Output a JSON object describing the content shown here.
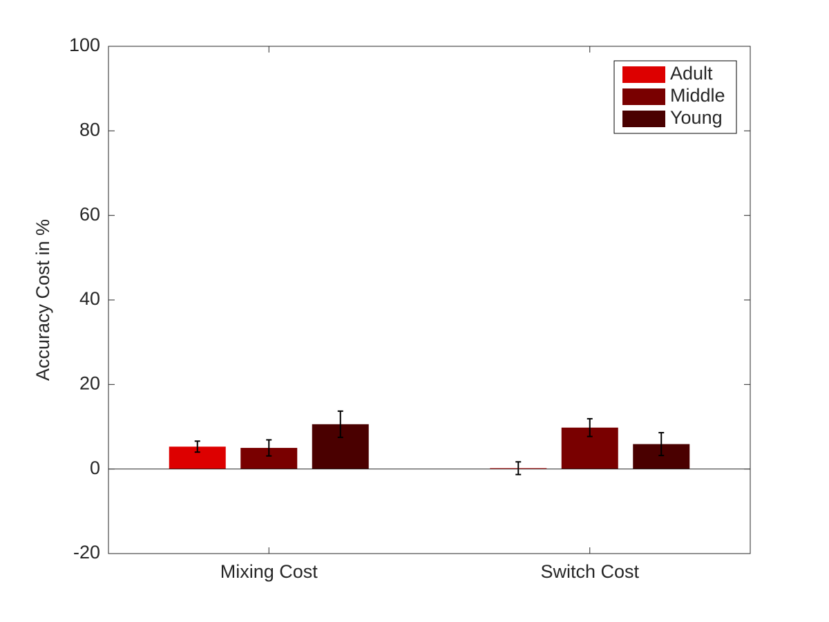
{
  "chart_data": {
    "type": "bar",
    "ylabel": "Accuracy Cost in %",
    "categories": [
      "Mixing Cost",
      "Switch Cost"
    ],
    "series": [
      {
        "name": "Adult",
        "color": "#dd0000",
        "values": [
          5.3,
          0.2
        ],
        "errors": [
          1.3,
          1.5
        ]
      },
      {
        "name": "Middle",
        "color": "#790000",
        "values": [
          5.0,
          9.8
        ],
        "errors": [
          1.9,
          2.1
        ]
      },
      {
        "name": "Young",
        "color": "#4a0000",
        "values": [
          10.6,
          5.9
        ],
        "errors": [
          3.1,
          2.7
        ]
      }
    ],
    "ylim": [
      -20,
      100
    ],
    "yticks": [
      -20,
      0,
      20,
      40,
      60,
      80,
      100
    ],
    "grid": false,
    "legend_location": "northeast"
  }
}
